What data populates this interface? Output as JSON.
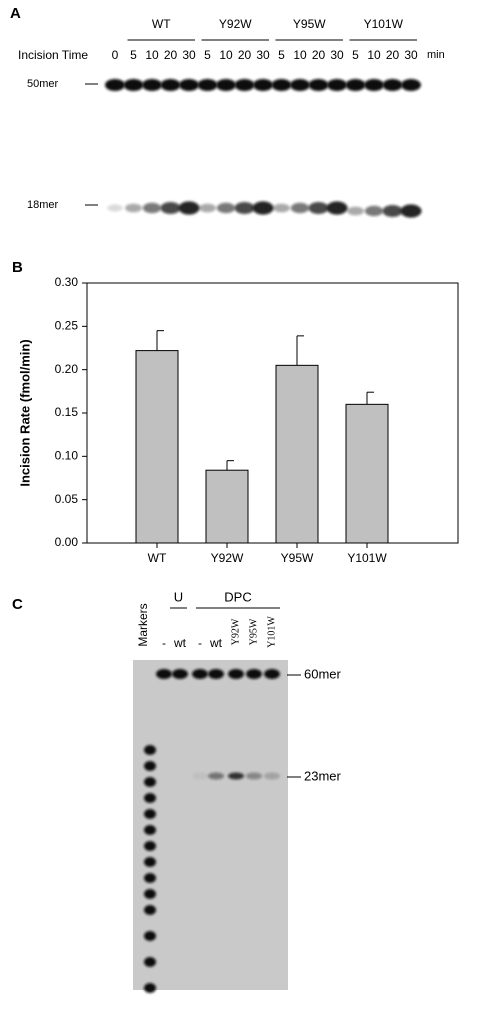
{
  "panel_a": {
    "label": "A",
    "row_title": "Incision Time",
    "unit": "min",
    "groups": [
      "WT",
      "Y92W",
      "Y95W",
      "Y101W"
    ],
    "lanes": [
      "0",
      "5",
      "10",
      "20",
      "30",
      "5",
      "10",
      "20",
      "30",
      "5",
      "10",
      "20",
      "30",
      "5",
      "10",
      "20",
      "30"
    ],
    "markers": [
      "50mer",
      "18mer"
    ]
  },
  "panel_b": {
    "label": "B"
  },
  "chart_data": {
    "type": "bar",
    "ylabel": "Incision Rate (fmol/min)",
    "categories": [
      "WT",
      "Y92W",
      "Y95W",
      "Y101W"
    ],
    "values": [
      0.222,
      0.084,
      0.205,
      0.16
    ],
    "errors": [
      0.023,
      0.011,
      0.034,
      0.014
    ],
    "color": "#c0c0c0",
    "ylim": [
      0,
      0.3
    ],
    "yticks": [
      {
        "value": 0,
        "label": "0.00"
      },
      {
        "value": 0.05,
        "label": "0.05"
      },
      {
        "value": 0.1,
        "label": "0.10"
      },
      {
        "value": 0.15,
        "label": "0.15"
      },
      {
        "value": 0.2,
        "label": "0.20"
      },
      {
        "value": 0.25,
        "label": "0.25"
      },
      {
        "value": 0.3,
        "label": "0.30"
      }
    ]
  },
  "panel_c": {
    "label": "C",
    "marker_lane": "Markers",
    "groups": [
      "U",
      "DPC"
    ],
    "lanes": [
      "-",
      "wt",
      "-",
      "wt",
      "Y92W",
      "Y95W",
      "Y101W"
    ],
    "markers": [
      "60mer",
      "23mer"
    ]
  }
}
